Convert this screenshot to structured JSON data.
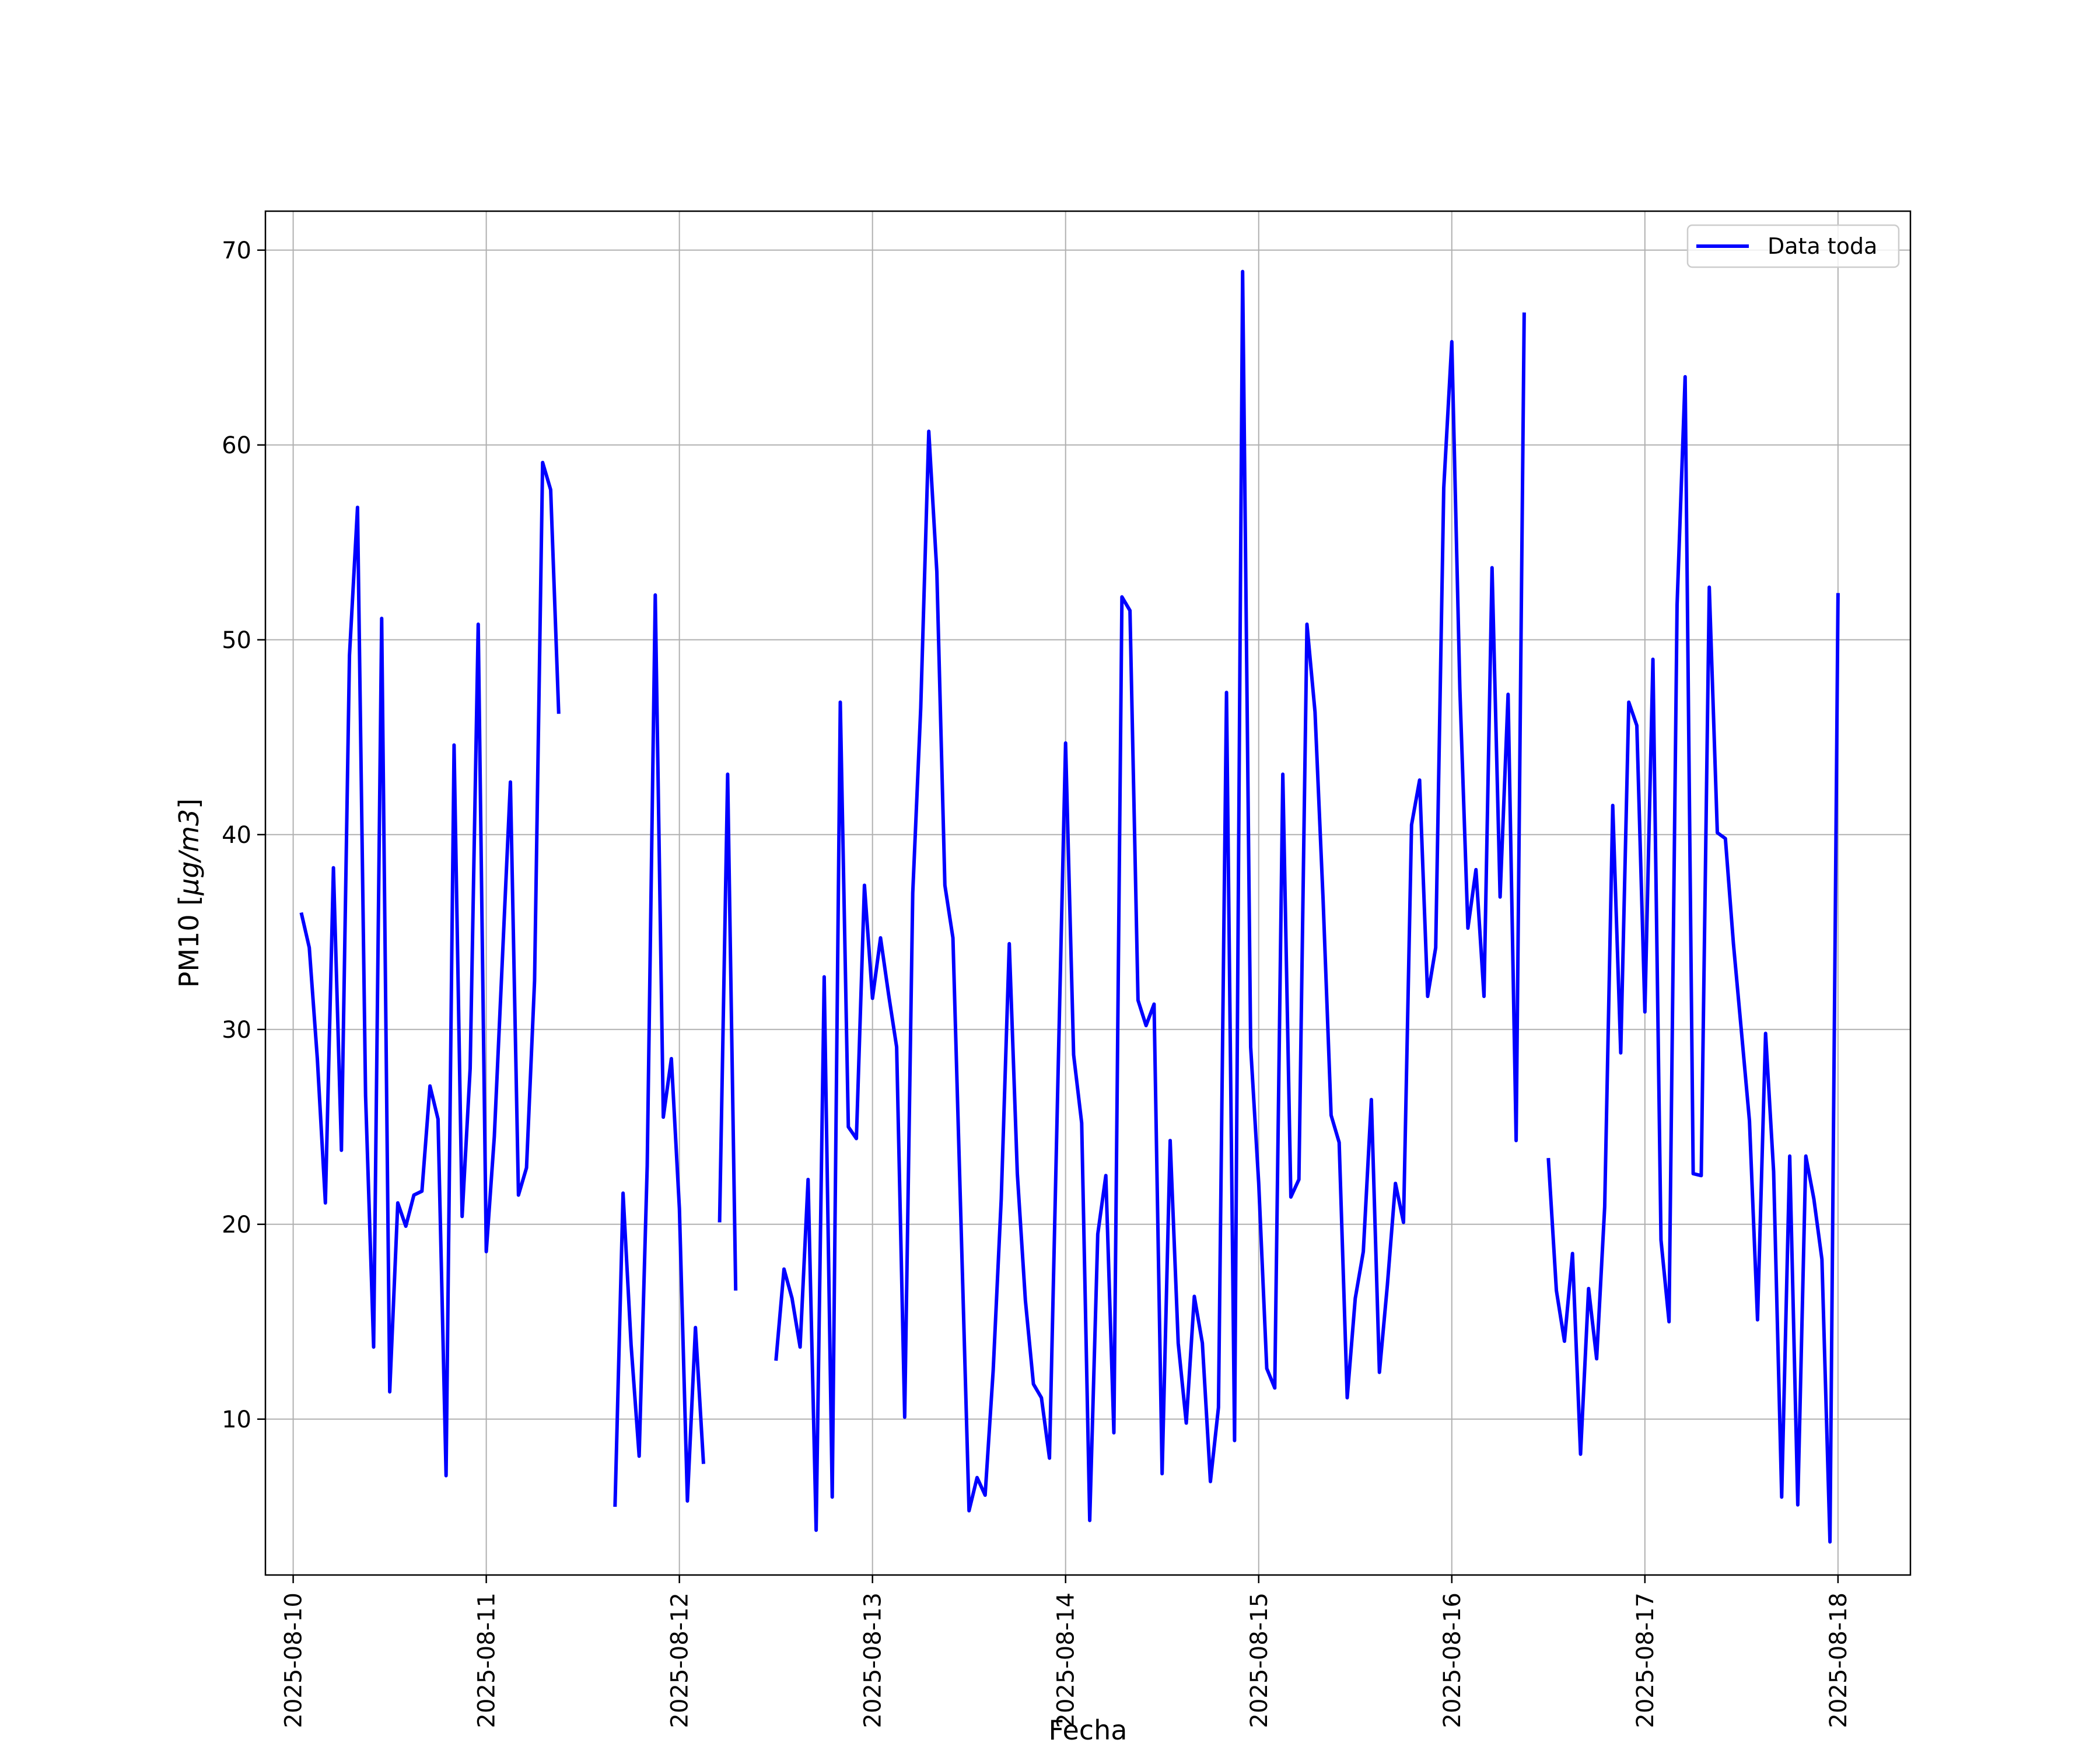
{
  "chart_data": {
    "type": "line",
    "xlabel": "Fecha",
    "ylabel": "PM10 [μg/m3]",
    "ylabel_parts": {
      "prefix": "PM10 [",
      "mu": "μ",
      "unit": "g/m3",
      "suffix": "]"
    },
    "ylim": [
      2,
      72
    ],
    "xlim": [
      "2025-08-09T20:33",
      "2025-08-18T09:00"
    ],
    "grid": true,
    "legend_position": "top-right",
    "x_ticks": [
      "2025-08-10",
      "2025-08-11",
      "2025-08-12",
      "2025-08-13",
      "2025-08-14",
      "2025-08-15",
      "2025-08-16",
      "2025-08-17",
      "2025-08-18"
    ],
    "y_ticks": [
      10,
      20,
      30,
      40,
      50,
      60,
      70
    ],
    "series": [
      {
        "name": "Data toda",
        "color": "#0000ff",
        "segments": [
          [
            [
              "2025-08-10 01:00",
              36.0
            ],
            [
              "2025-08-10 02:00",
              34.2
            ],
            [
              "2025-08-10 03:00",
              28.5
            ],
            [
              "2025-08-10 04:00",
              21.1
            ],
            [
              "2025-08-10 05:00",
              38.3
            ],
            [
              "2025-08-10 06:00",
              23.8
            ],
            [
              "2025-08-10 07:00",
              49.2
            ],
            [
              "2025-08-10 08:00",
              56.8
            ],
            [
              "2025-08-10 09:00",
              26.6
            ],
            [
              "2025-08-10 10:00",
              13.7
            ],
            [
              "2025-08-10 11:00",
              51.1
            ],
            [
              "2025-08-10 12:00",
              11.4
            ],
            [
              "2025-08-10 13:00",
              21.1
            ],
            [
              "2025-08-10 14:00",
              19.9
            ],
            [
              "2025-08-10 15:00",
              21.5
            ],
            [
              "2025-08-10 16:00",
              21.7
            ],
            [
              "2025-08-10 17:00",
              27.1
            ],
            [
              "2025-08-10 18:00",
              25.4
            ],
            [
              "2025-08-10 19:00",
              7.1
            ],
            [
              "2025-08-10 20:00",
              44.6
            ],
            [
              "2025-08-10 21:00",
              20.4
            ],
            [
              "2025-08-10 22:00",
              28.0
            ],
            [
              "2025-08-10 23:00",
              50.8
            ],
            [
              "2025-08-11 00:00",
              18.6
            ],
            [
              "2025-08-11 01:00",
              24.5
            ],
            [
              "2025-08-11 02:00",
              33.6
            ],
            [
              "2025-08-11 03:00",
              42.7
            ],
            [
              "2025-08-11 04:00",
              21.5
            ],
            [
              "2025-08-11 05:00",
              22.9
            ],
            [
              "2025-08-11 06:00",
              32.5
            ],
            [
              "2025-08-11 07:00",
              59.1
            ],
            [
              "2025-08-11 08:00",
              57.7
            ],
            [
              "2025-08-11 09:00",
              46.2
            ]
          ],
          [
            [
              "2025-08-11 16:00",
              5.5
            ],
            [
              "2025-08-11 17:00",
              21.6
            ],
            [
              "2025-08-11 18:00",
              13.8
            ],
            [
              "2025-08-11 19:00",
              8.1
            ],
            [
              "2025-08-11 20:00",
              23.0
            ],
            [
              "2025-08-11 21:00",
              52.3
            ],
            [
              "2025-08-11 22:00",
              25.5
            ],
            [
              "2025-08-11 23:00",
              28.5
            ],
            [
              "2025-08-12 00:00",
              20.8
            ],
            [
              "2025-08-12 01:00",
              5.8
            ],
            [
              "2025-08-12 02:00",
              14.7
            ],
            [
              "2025-08-12 03:00",
              7.7
            ]
          ],
          [
            [
              "2025-08-12 05:00",
              20.1
            ],
            [
              "2025-08-12 06:00",
              43.1
            ],
            [
              "2025-08-12 07:00",
              16.6
            ]
          ],
          [
            [
              "2025-08-12 12:00",
              13.0
            ],
            [
              "2025-08-12 13:00",
              17.7
            ],
            [
              "2025-08-12 14:00",
              16.2
            ],
            [
              "2025-08-12 15:00",
              13.7
            ],
            [
              "2025-08-12 16:00",
              22.3
            ],
            [
              "2025-08-12 17:00",
              4.3
            ],
            [
              "2025-08-12 18:00",
              32.7
            ],
            [
              "2025-08-12 19:00",
              6.0
            ],
            [
              "2025-08-12 20:00",
              46.8
            ],
            [
              "2025-08-12 21:00",
              25.0
            ],
            [
              "2025-08-12 22:00",
              24.4
            ],
            [
              "2025-08-12 23:00",
              37.4
            ],
            [
              "2025-08-13 00:00",
              31.6
            ],
            [
              "2025-08-13 01:00",
              34.7
            ],
            [
              "2025-08-13 02:00",
              31.8
            ],
            [
              "2025-08-13 03:00",
              29.1
            ],
            [
              "2025-08-13 04:00",
              10.1
            ],
            [
              "2025-08-13 05:00",
              37.0
            ],
            [
              "2025-08-13 06:00",
              46.5
            ],
            [
              "2025-08-13 07:00",
              60.7
            ],
            [
              "2025-08-13 08:00",
              53.5
            ],
            [
              "2025-08-13 09:00",
              37.4
            ],
            [
              "2025-08-13 10:00",
              34.7
            ],
            [
              "2025-08-13 11:00",
              20.1
            ],
            [
              "2025-08-13 12:00",
              5.3
            ],
            [
              "2025-08-13 13:00",
              7.0
            ],
            [
              "2025-08-13 14:00",
              6.1
            ],
            [
              "2025-08-13 15:00",
              12.5
            ],
            [
              "2025-08-13 16:00",
              21.3
            ],
            [
              "2025-08-13 17:00",
              34.4
            ],
            [
              "2025-08-13 18:00",
              22.6
            ],
            [
              "2025-08-13 19:00",
              16.1
            ],
            [
              "2025-08-13 20:00",
              11.8
            ],
            [
              "2025-08-13 21:00",
              11.1
            ],
            [
              "2025-08-13 22:00",
              8.0
            ],
            [
              "2025-08-13 23:00",
              26.5
            ],
            [
              "2025-08-14 00:00",
              44.7
            ],
            [
              "2025-08-14 01:00",
              28.7
            ],
            [
              "2025-08-14 02:00",
              25.2
            ],
            [
              "2025-08-14 03:00",
              4.8
            ],
            [
              "2025-08-14 04:00",
              19.5
            ],
            [
              "2025-08-14 05:00",
              22.5
            ],
            [
              "2025-08-14 06:00",
              9.3
            ],
            [
              "2025-08-14 07:00",
              52.2
            ],
            [
              "2025-08-14 08:00",
              51.5
            ],
            [
              "2025-08-14 09:00",
              31.5
            ],
            [
              "2025-08-14 10:00",
              30.2
            ],
            [
              "2025-08-14 11:00",
              31.3
            ],
            [
              "2025-08-14 12:00",
              7.2
            ],
            [
              "2025-08-14 13:00",
              24.3
            ],
            [
              "2025-08-14 14:00",
              13.9
            ],
            [
              "2025-08-14 15:00",
              9.8
            ],
            [
              "2025-08-14 16:00",
              16.3
            ],
            [
              "2025-08-14 17:00",
              13.9
            ],
            [
              "2025-08-14 18:00",
              6.8
            ],
            [
              "2025-08-14 19:00",
              10.6
            ],
            [
              "2025-08-14 20:00",
              47.3
            ],
            [
              "2025-08-14 21:00",
              8.9
            ],
            [
              "2025-08-14 22:00",
              68.9
            ],
            [
              "2025-08-14 23:00",
              29.1
            ],
            [
              "2025-08-15 00:00",
              22.1
            ],
            [
              "2025-08-15 01:00",
              12.6
            ],
            [
              "2025-08-15 02:00",
              11.6
            ],
            [
              "2025-08-15 03:00",
              43.1
            ],
            [
              "2025-08-15 04:00",
              21.4
            ],
            [
              "2025-08-15 05:00",
              22.3
            ],
            [
              "2025-08-15 06:00",
              50.8
            ],
            [
              "2025-08-15 07:00",
              46.3
            ],
            [
              "2025-08-15 08:00",
              36.7
            ],
            [
              "2025-08-15 09:00",
              25.6
            ],
            [
              "2025-08-15 10:00",
              24.2
            ],
            [
              "2025-08-15 11:00",
              11.1
            ],
            [
              "2025-08-15 12:00",
              16.2
            ],
            [
              "2025-08-15 13:00",
              18.6
            ],
            [
              "2025-08-15 14:00",
              26.4
            ],
            [
              "2025-08-15 15:00",
              12.4
            ],
            [
              "2025-08-15 16:00",
              16.9
            ],
            [
              "2025-08-15 17:00",
              22.1
            ],
            [
              "2025-08-15 18:00",
              20.1
            ],
            [
              "2025-08-15 19:00",
              40.5
            ],
            [
              "2025-08-15 20:00",
              42.8
            ],
            [
              "2025-08-15 21:00",
              31.7
            ],
            [
              "2025-08-15 22:00",
              34.2
            ],
            [
              "2025-08-15 23:00",
              57.8
            ],
            [
              "2025-08-16 00:00",
              65.3
            ],
            [
              "2025-08-16 01:00",
              47.5
            ],
            [
              "2025-08-16 02:00",
              35.2
            ],
            [
              "2025-08-16 03:00",
              38.2
            ],
            [
              "2025-08-16 04:00",
              31.7
            ],
            [
              "2025-08-16 05:00",
              53.7
            ],
            [
              "2025-08-16 06:00",
              36.8
            ],
            [
              "2025-08-16 07:00",
              47.2
            ],
            [
              "2025-08-16 08:00",
              24.3
            ],
            [
              "2025-08-16 09:00",
              66.8
            ]
          ],
          [
            [
              "2025-08-16 12:00",
              23.4
            ],
            [
              "2025-08-16 13:00",
              16.6
            ],
            [
              "2025-08-16 14:00",
              14.0
            ],
            [
              "2025-08-16 15:00",
              18.5
            ],
            [
              "2025-08-16 16:00",
              8.2
            ],
            [
              "2025-08-16 17:00",
              16.7
            ],
            [
              "2025-08-16 18:00",
              13.1
            ],
            [
              "2025-08-16 19:00",
              20.9
            ],
            [
              "2025-08-16 20:00",
              41.5
            ],
            [
              "2025-08-16 21:00",
              28.8
            ],
            [
              "2025-08-16 22:00",
              46.8
            ],
            [
              "2025-08-16 23:00",
              45.6
            ],
            [
              "2025-08-17 00:00",
              30.9
            ],
            [
              "2025-08-17 01:00",
              49.0
            ],
            [
              "2025-08-17 02:00",
              19.2
            ],
            [
              "2025-08-17 03:00",
              15.0
            ],
            [
              "2025-08-17 04:00",
              51.8
            ],
            [
              "2025-08-17 05:00",
              63.5
            ],
            [
              "2025-08-17 06:00",
              22.6
            ],
            [
              "2025-08-17 07:00",
              22.5
            ],
            [
              "2025-08-17 08:00",
              52.7
            ],
            [
              "2025-08-17 09:00",
              40.1
            ],
            [
              "2025-08-17 10:00",
              39.8
            ],
            [
              "2025-08-17 11:00",
              34.4
            ],
            [
              "2025-08-17 12:00",
              29.9
            ],
            [
              "2025-08-17 13:00",
              25.3
            ],
            [
              "2025-08-17 14:00",
              15.1
            ],
            [
              "2025-08-17 15:00",
              29.8
            ],
            [
              "2025-08-17 16:00",
              22.7
            ],
            [
              "2025-08-17 17:00",
              6.0
            ],
            [
              "2025-08-17 18:00",
              23.5
            ],
            [
              "2025-08-17 19:00",
              5.6
            ],
            [
              "2025-08-17 20:00",
              23.5
            ],
            [
              "2025-08-17 21:00",
              21.3
            ],
            [
              "2025-08-17 22:00",
              18.2
            ],
            [
              "2025-08-17 23:00",
              3.7
            ],
            [
              "2025-08-18 00:00",
              52.4
            ]
          ]
        ]
      }
    ]
  }
}
